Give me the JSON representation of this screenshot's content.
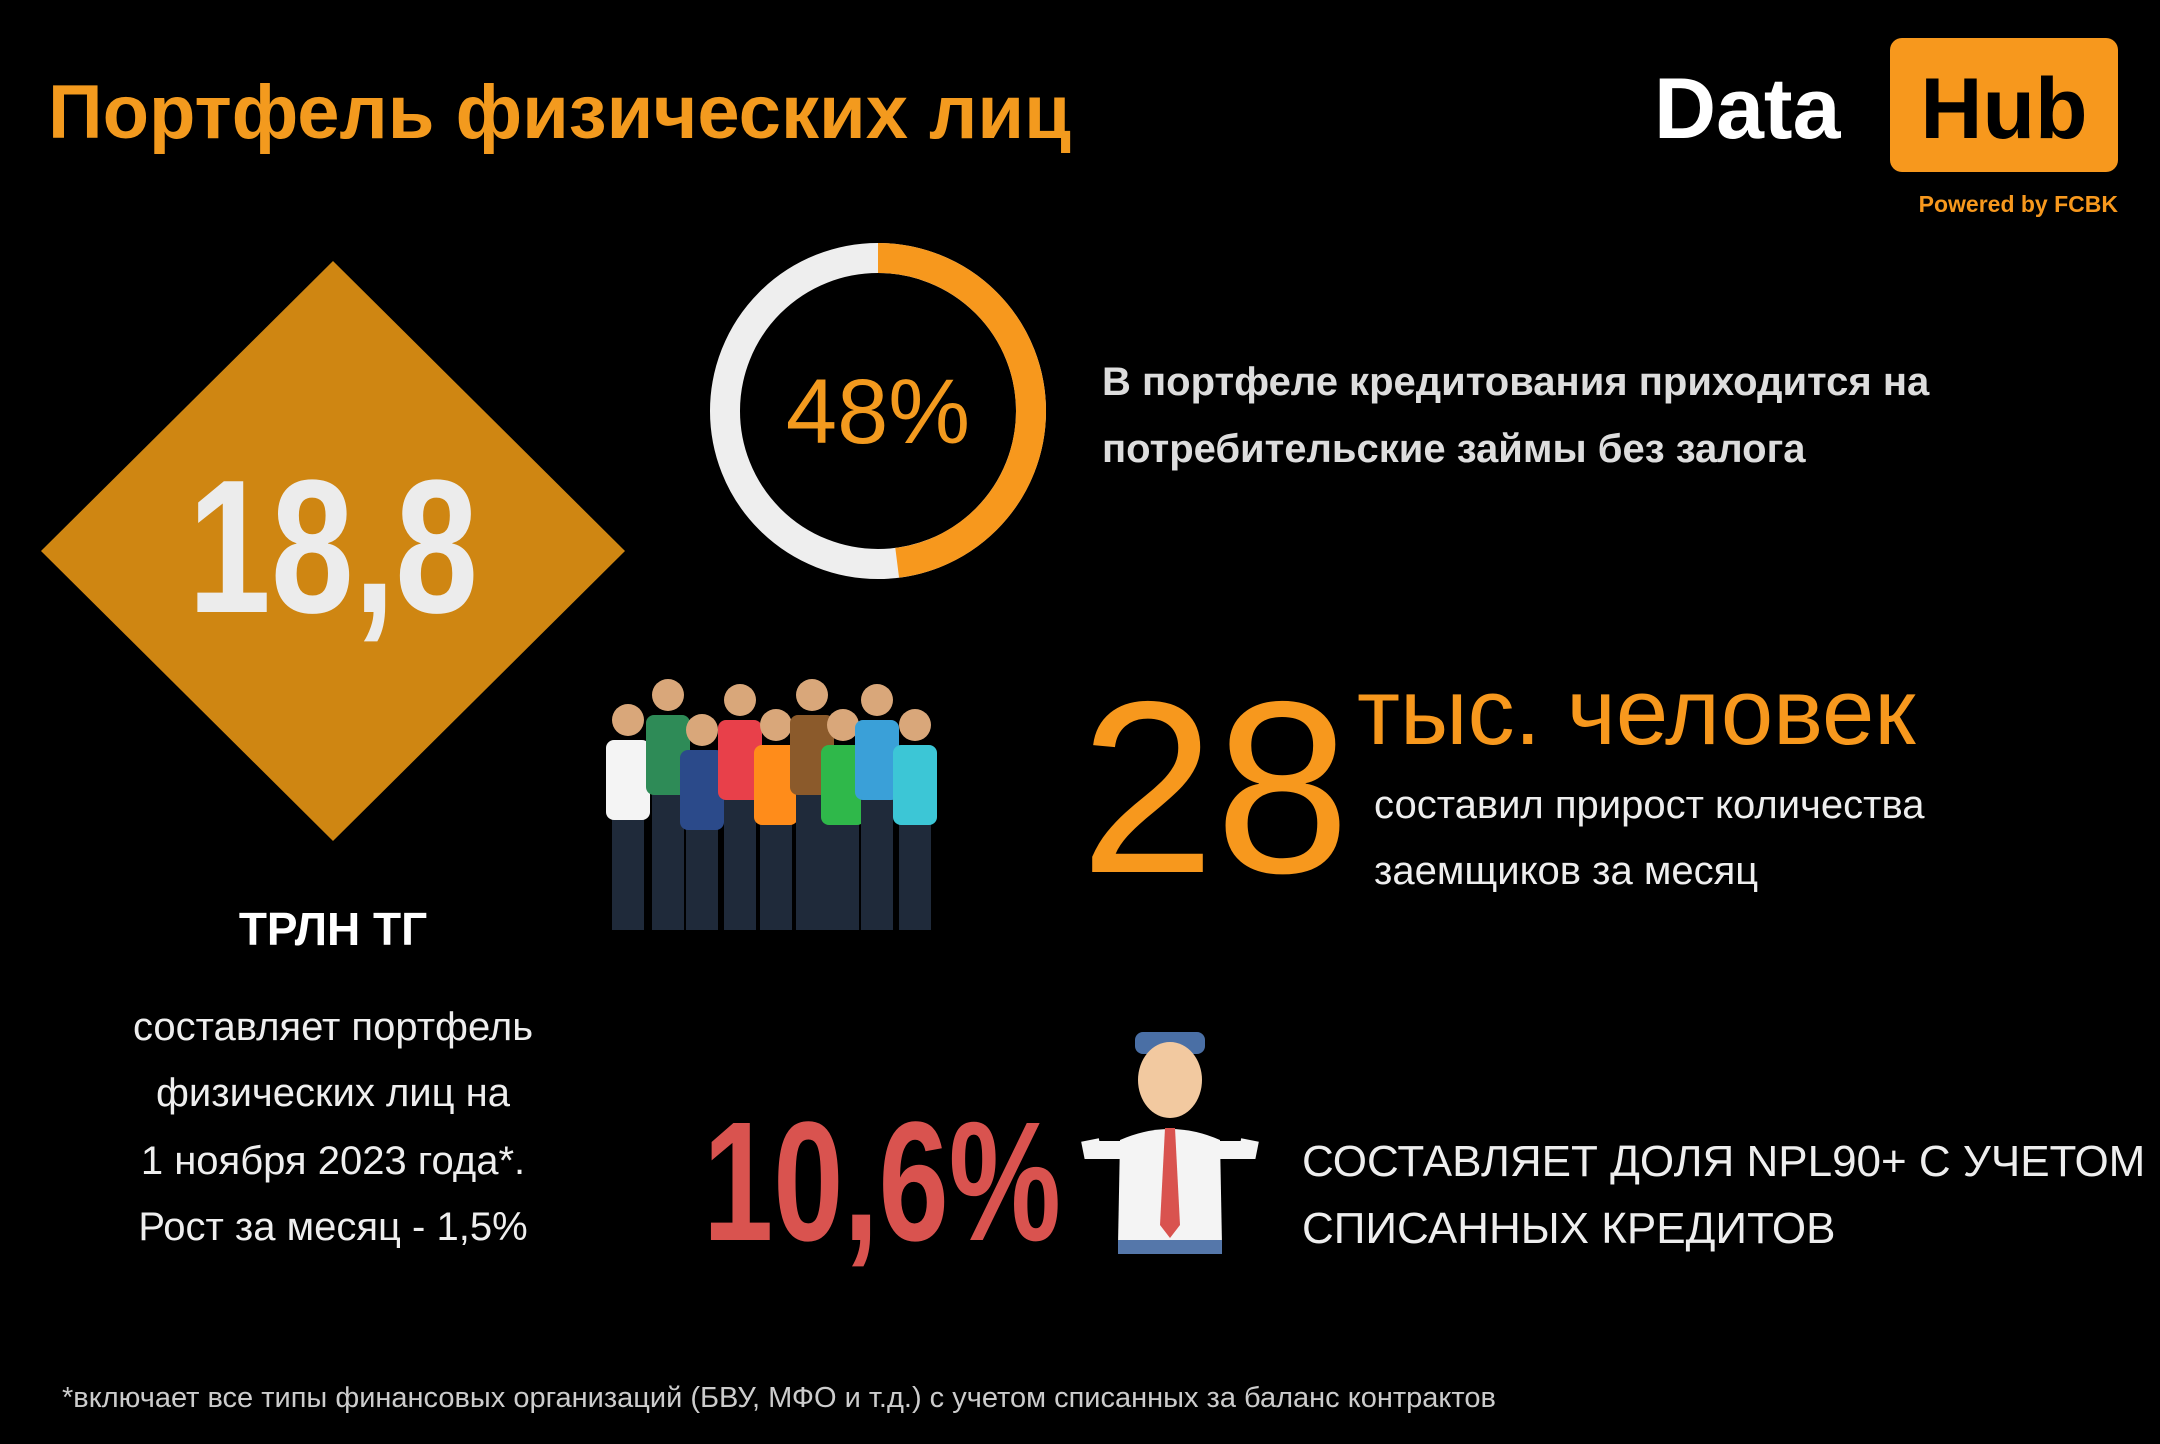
{
  "header": {
    "title": "Портфель физических лиц",
    "logo": {
      "left": "Data",
      "right": "Hub",
      "tagline": "Powered by FCBK"
    }
  },
  "portfolio": {
    "value": "18,8",
    "unit": "ТРЛН ТГ",
    "description": [
      "составляет портфель",
      "физических лиц на",
      "1 ноября 2023 года*.",
      "Рост за месяц - 1,5%"
    ]
  },
  "unsecured": {
    "share": 48,
    "share_label": "48%",
    "text": [
      "В портфеле кредитования приходится на",
      "потребительские займы без залога"
    ]
  },
  "borrowers": {
    "value": "28",
    "unit": "тыс. человек",
    "text": [
      "составил прирост количества",
      "заемщиков за месяц"
    ]
  },
  "npl": {
    "value": "10,6%",
    "text": [
      "СОСТАВЛЯЕТ ДОЛЯ NPL90+ С УЧЕТОМ",
      "СПИСАННЫХ КРЕДИТОВ"
    ]
  },
  "footnote": "*включает все типы финансовых организаций (БВУ, МФО и т.д.) с учетом списанных за баланс контрактов"
}
